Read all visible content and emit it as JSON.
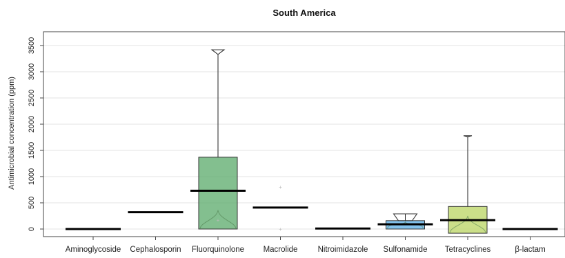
{
  "chart_data": {
    "type": "box",
    "title": "South America",
    "ylabel": "Antimicrobial  concentration (ppm)",
    "xlabel": "",
    "ylim": [
      -150,
      3650
    ],
    "yticks": [
      0,
      500,
      1000,
      1500,
      2000,
      2500,
      3000,
      3500
    ],
    "grid": "horizontal",
    "categories": [
      "Aminoglycoside",
      "Cephalosporin",
      "Fluorquinolone",
      "Macrolide",
      "Nitroimidazole",
      "Sulfonamide",
      "Tetracyclines",
      "β-lactam"
    ],
    "series": [
      {
        "category": "Aminoglycoside",
        "median": 0,
        "q1": null,
        "q3": null,
        "whisker_low": null,
        "whisker_high": null,
        "color": null,
        "points": []
      },
      {
        "category": "Cephalosporin",
        "median": 320,
        "q1": null,
        "q3": null,
        "whisker_low": null,
        "whisker_high": null,
        "color": null,
        "points": []
      },
      {
        "category": "Fluorquinolone",
        "median": 730,
        "q1": 0,
        "q3": 1370,
        "whisker_low": 0,
        "whisker_high": 3330,
        "color": "#5aaa6a",
        "violin_peak": 360,
        "notch_high": 3420,
        "points": [
          170
        ]
      },
      {
        "category": "Macrolide",
        "median": 410,
        "q1": null,
        "q3": null,
        "whisker_low": null,
        "whisker_high": null,
        "color": null,
        "points": [
          800,
          0
        ]
      },
      {
        "category": "Nitroimidazole",
        "median": 10,
        "q1": null,
        "q3": null,
        "whisker_low": null,
        "whisker_high": null,
        "color": null,
        "points": []
      },
      {
        "category": "Sulfonamide",
        "median": 90,
        "q1": 0,
        "q3": 160,
        "whisker_low": 0,
        "whisker_high": 290,
        "color": "#5aaee6",
        "violin_peak": 130,
        "notch_high": 290,
        "points": []
      },
      {
        "category": "Tetracyclines",
        "median": 170,
        "q1": -80,
        "q3": 430,
        "whisker_low": -80,
        "whisker_high": 1760,
        "color": "#b9d462",
        "violin_peak": 250,
        "notch_high": 1780,
        "points": []
      },
      {
        "category": "β-lactam",
        "median": 0,
        "q1": null,
        "q3": null,
        "whisker_low": null,
        "whisker_high": null,
        "color": null,
        "points": []
      }
    ]
  }
}
